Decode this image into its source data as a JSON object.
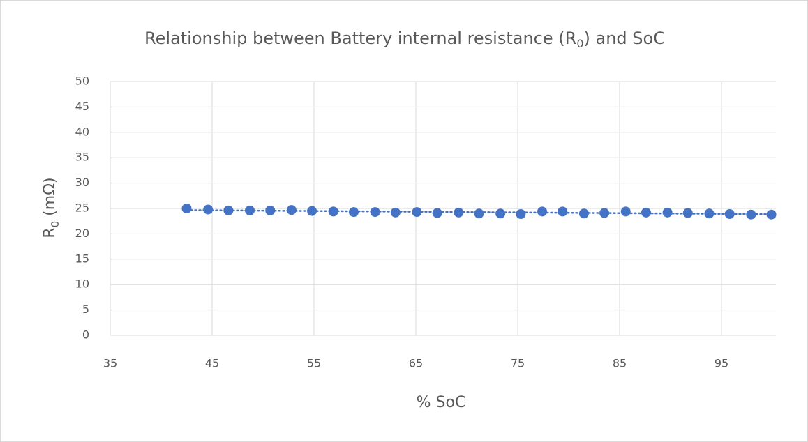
{
  "chart_data": {
    "type": "scatter",
    "title_parts": [
      "Relationship between Battery internal resistance (R",
      "0",
      ") and SoC"
    ],
    "x_label": "% SoC",
    "y_label_parts": [
      "R",
      "0",
      " (mΩ)"
    ],
    "series": [
      {
        "color": "#4472c4",
        "x": [
          42.5,
          44.6,
          46.6,
          48.7,
          50.7,
          52.8,
          54.8,
          56.9,
          58.9,
          61,
          63,
          65.1,
          67.1,
          69.2,
          71.2,
          73.3,
          75.3,
          77.4,
          79.4,
          81.5,
          83.5,
          85.6,
          87.6,
          89.7,
          91.7,
          93.8,
          95.8,
          97.9,
          99.9
        ],
        "values": [
          25.0,
          24.8,
          24.6,
          24.6,
          24.6,
          24.7,
          24.5,
          24.4,
          24.3,
          24.3,
          24.2,
          24.3,
          24.1,
          24.2,
          24.0,
          24.0,
          23.9,
          24.4,
          24.4,
          24.0,
          24.1,
          24.4,
          24.2,
          24.2,
          24.1,
          24.0,
          23.9,
          23.8,
          23.8
        ]
      }
    ],
    "trendline": "linear",
    "xlim": [
      35,
      100
    ],
    "xticks": [
      35,
      45,
      55,
      65,
      75,
      85,
      95
    ],
    "ylim": [
      0,
      50
    ],
    "yticks": [
      0,
      5,
      10,
      15,
      20,
      25,
      30,
      35,
      40,
      45,
      50
    ],
    "grid": true
  }
}
